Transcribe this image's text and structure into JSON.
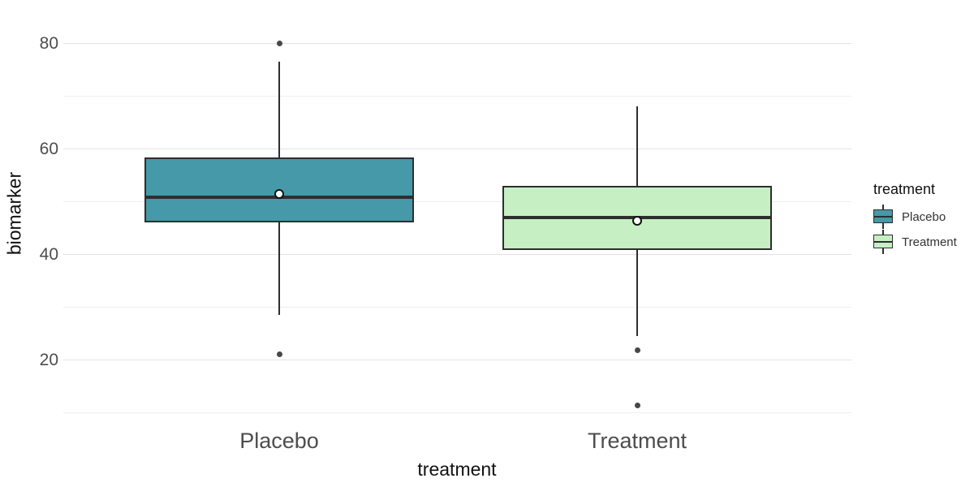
{
  "figure": {
    "background": "#ffffff",
    "panel": {
      "grid_major_color": "#e3e3e3",
      "grid_minor_color": "#efefef"
    }
  },
  "legend": {
    "title": "treatment",
    "items": [
      {
        "label": "Placebo",
        "color": "#4599a8"
      },
      {
        "label": "Treatment",
        "color": "#c6f0c3"
      }
    ]
  },
  "chart_data": {
    "type": "boxplot",
    "title": "",
    "xlabel": "treatment",
    "ylabel": "biomarker",
    "categories": [
      "Placebo",
      "Treatment"
    ],
    "ylim": [
      8,
      87
    ],
    "yticks": [
      20,
      40,
      60,
      80
    ],
    "yticks_minor": [
      10,
      30,
      50,
      70
    ],
    "grid": true,
    "legend_position": "right",
    "stroke_color": "#2e2e2e",
    "outlier_color": "#474747",
    "mean_marker": "white-filled circle with black outline",
    "series": [
      {
        "name": "Placebo",
        "fill": "#4599a8",
        "whisker_low": 28.5,
        "q1": 46.0,
        "median": 50.8,
        "mean": 51.5,
        "q3": 58.3,
        "whisker_high": 76.5,
        "outliers": [
          80,
          21
        ]
      },
      {
        "name": "Treatment",
        "fill": "#c6f0c3",
        "whisker_low": 24.5,
        "q1": 40.8,
        "median": 47.0,
        "mean": 46.3,
        "q3": 52.9,
        "whisker_high": 68.0,
        "outliers": [
          21.8,
          11.3
        ]
      }
    ]
  }
}
